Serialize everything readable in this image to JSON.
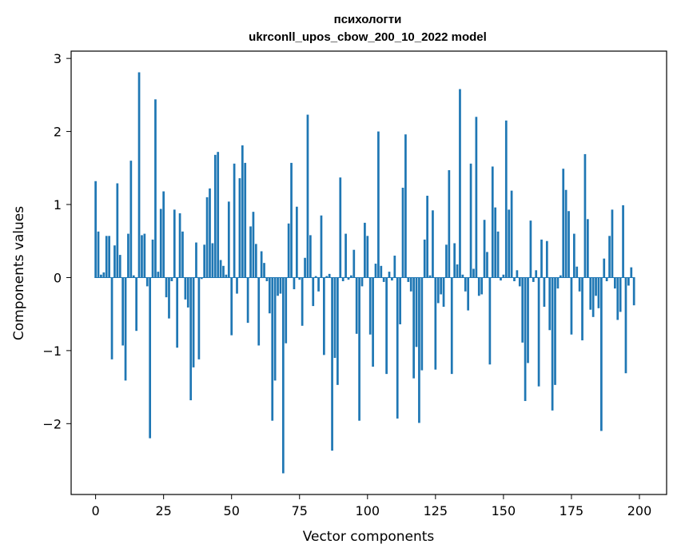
{
  "chart_data": {
    "type": "bar",
    "title_line1": "психологти",
    "title_line2": "ukrconll_upos_cbow_200_10_2022 model",
    "xlabel": "Vector components",
    "ylabel": "Components values",
    "xlim": [
      -9,
      210
    ],
    "ylim": [
      -2.97,
      3.1
    ],
    "xticks": [
      0,
      25,
      50,
      75,
      100,
      125,
      150,
      175,
      200
    ],
    "yticks": [
      -2,
      -1,
      0,
      1,
      2,
      3
    ],
    "ytick_labels": [
      "−2",
      "−1",
      "0",
      "1",
      "2",
      "3"
    ],
    "values": [
      1.32,
      0.63,
      0.04,
      0.07,
      0.57,
      0.57,
      -1.12,
      0.44,
      1.29,
      0.31,
      -0.93,
      -1.41,
      0.6,
      1.6,
      0.03,
      -0.73,
      2.81,
      0.58,
      0.6,
      -0.12,
      -2.2,
      0.52,
      2.44,
      0.08,
      0.94,
      1.18,
      -0.27,
      -0.56,
      -0.05,
      0.93,
      -0.96,
      0.88,
      0.63,
      -0.3,
      -0.41,
      -1.68,
      -1.23,
      0.48,
      -1.12,
      -0.02,
      0.45,
      1.1,
      1.22,
      0.47,
      1.68,
      1.72,
      0.24,
      0.16,
      0.04,
      1.04,
      -0.79,
      1.56,
      -0.22,
      1.36,
      1.81,
      1.57,
      -0.62,
      0.7,
      0.9,
      0.46,
      -0.93,
      0.36,
      0.2,
      -0.05,
      -0.49,
      -1.96,
      -1.41,
      -0.25,
      -0.22,
      -2.68,
      -0.9,
      0.74,
      1.57,
      -0.16,
      0.97,
      -0.03,
      -0.66,
      0.27,
      2.23,
      0.58,
      -0.39,
      0.02,
      -0.19,
      0.85,
      -1.06,
      0.02,
      0.05,
      -2.37,
      -1.1,
      -1.47,
      1.37,
      -0.05,
      0.6,
      -0.03,
      0.03,
      0.38,
      -0.77,
      -1.96,
      -0.12,
      0.75,
      0.57,
      -0.78,
      -1.22,
      0.19,
      2.0,
      0.16,
      -0.06,
      -1.32,
      0.08,
      -0.04,
      0.3,
      -1.93,
      -0.64,
      1.23,
      1.96,
      -0.06,
      -0.19,
      -1.38,
      -0.95,
      -1.99,
      -1.27,
      0.52,
      1.12,
      0.03,
      0.92,
      -1.26,
      -0.35,
      -0.23,
      -0.4,
      0.45,
      1.47,
      -1.32,
      0.47,
      0.18,
      2.58,
      0.04,
      -0.19,
      -0.45,
      1.56,
      0.12,
      2.2,
      -0.25,
      -0.23,
      0.79,
      0.35,
      -1.19,
      1.52,
      0.96,
      0.63,
      -0.04,
      0.04,
      2.15,
      0.93,
      1.19,
      -0.05,
      0.1,
      -0.12,
      -0.89,
      -1.69,
      -1.17,
      0.78,
      -0.06,
      0.1,
      -1.49,
      0.52,
      -0.4,
      0.5,
      -0.72,
      -1.82,
      -1.47,
      -0.15,
      0.03,
      1.49,
      1.2,
      0.91,
      -0.78,
      0.6,
      0.15,
      -0.19,
      -0.86,
      1.69,
      0.8,
      -0.44,
      -0.54,
      -0.25,
      -0.42,
      -2.1,
      0.26,
      -0.05,
      0.57,
      0.93,
      -0.15,
      -0.58,
      -0.47,
      0.99,
      -1.31,
      -0.11,
      0.14,
      -0.38
    ]
  }
}
